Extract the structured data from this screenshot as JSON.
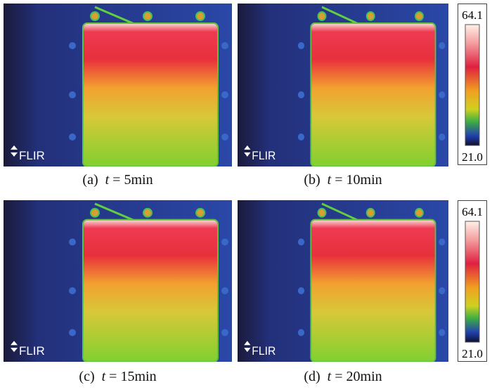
{
  "panels": [
    {
      "label": "(a)",
      "variable": "t",
      "value": "= 5min",
      "watermark": "FLIR"
    },
    {
      "label": "(b)",
      "variable": "t",
      "value": "= 10min",
      "watermark": "FLIR"
    },
    {
      "label": "(c)",
      "variable": "t",
      "value": "= 15min",
      "watermark": "FLIR"
    },
    {
      "label": "(d)",
      "variable": "t",
      "value": "= 20min",
      "watermark": "FLIR"
    }
  ],
  "colorbars": [
    {
      "max": "64.1",
      "min": "21.0"
    },
    {
      "max": "64.1",
      "min": "21.0"
    }
  ]
}
